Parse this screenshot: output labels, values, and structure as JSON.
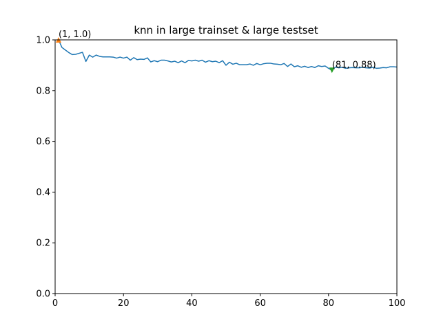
{
  "chart_data": {
    "type": "line",
    "title": "knn in large trainset & large testset",
    "xlabel": "",
    "ylabel": "",
    "xlim": [
      0,
      100
    ],
    "ylim": [
      0.0,
      1.0
    ],
    "xticks": [
      0,
      20,
      40,
      60,
      80,
      100
    ],
    "yticks": [
      0.0,
      0.2,
      0.4,
      0.6,
      0.8,
      1.0
    ],
    "xtick_labels": [
      "0",
      "20",
      "40",
      "60",
      "80",
      "100"
    ],
    "ytick_labels": [
      "0.0",
      "0.2",
      "0.4",
      "0.6",
      "0.8",
      "1.0"
    ],
    "grid": false,
    "series": [
      {
        "color": "#1f77b4",
        "x": [
          1,
          2,
          3,
          4,
          5,
          6,
          7,
          8,
          9,
          10,
          11,
          12,
          13,
          14,
          15,
          16,
          17,
          18,
          19,
          20,
          21,
          22,
          23,
          24,
          25,
          26,
          27,
          28,
          29,
          30,
          31,
          32,
          33,
          34,
          35,
          36,
          37,
          38,
          39,
          40,
          41,
          42,
          43,
          44,
          45,
          46,
          47,
          48,
          49,
          50,
          51,
          52,
          53,
          54,
          55,
          56,
          57,
          58,
          59,
          60,
          61,
          62,
          63,
          64,
          65,
          66,
          67,
          68,
          69,
          70,
          71,
          72,
          73,
          74,
          75,
          76,
          77,
          78,
          79,
          80,
          81,
          82,
          83,
          84,
          85,
          86,
          87,
          88,
          89,
          90,
          91,
          92,
          93,
          94,
          95,
          96,
          97,
          98,
          99,
          100
        ],
        "y": [
          1.0,
          0.97,
          0.96,
          0.95,
          0.942,
          0.943,
          0.947,
          0.951,
          0.915,
          0.94,
          0.932,
          0.94,
          0.935,
          0.933,
          0.933,
          0.933,
          0.932,
          0.928,
          0.932,
          0.928,
          0.932,
          0.92,
          0.93,
          0.922,
          0.924,
          0.923,
          0.929,
          0.913,
          0.918,
          0.914,
          0.92,
          0.92,
          0.917,
          0.913,
          0.916,
          0.91,
          0.917,
          0.91,
          0.919,
          0.917,
          0.92,
          0.916,
          0.92,
          0.912,
          0.918,
          0.914,
          0.916,
          0.91,
          0.918,
          0.9,
          0.912,
          0.904,
          0.908,
          0.902,
          0.902,
          0.902,
          0.905,
          0.9,
          0.907,
          0.902,
          0.906,
          0.908,
          0.908,
          0.905,
          0.904,
          0.902,
          0.907,
          0.895,
          0.905,
          0.894,
          0.898,
          0.892,
          0.896,
          0.891,
          0.895,
          0.891,
          0.898,
          0.895,
          0.897,
          0.888,
          0.88,
          0.893,
          0.89,
          0.892,
          0.888,
          0.89,
          0.891,
          0.89,
          0.89,
          0.892,
          0.89,
          0.889,
          0.892,
          0.888,
          0.889,
          0.891,
          0.89,
          0.894,
          0.894,
          0.893
        ]
      }
    ],
    "markers": [
      {
        "x": 1,
        "y": 1.0,
        "shape": "triangle-up",
        "color": "#ff7f0e",
        "label": "(1, 1.0)"
      },
      {
        "x": 81,
        "y": 0.88,
        "shape": "triangle-down",
        "color": "#2ca02c",
        "label": "(81, 0.88)"
      }
    ]
  }
}
